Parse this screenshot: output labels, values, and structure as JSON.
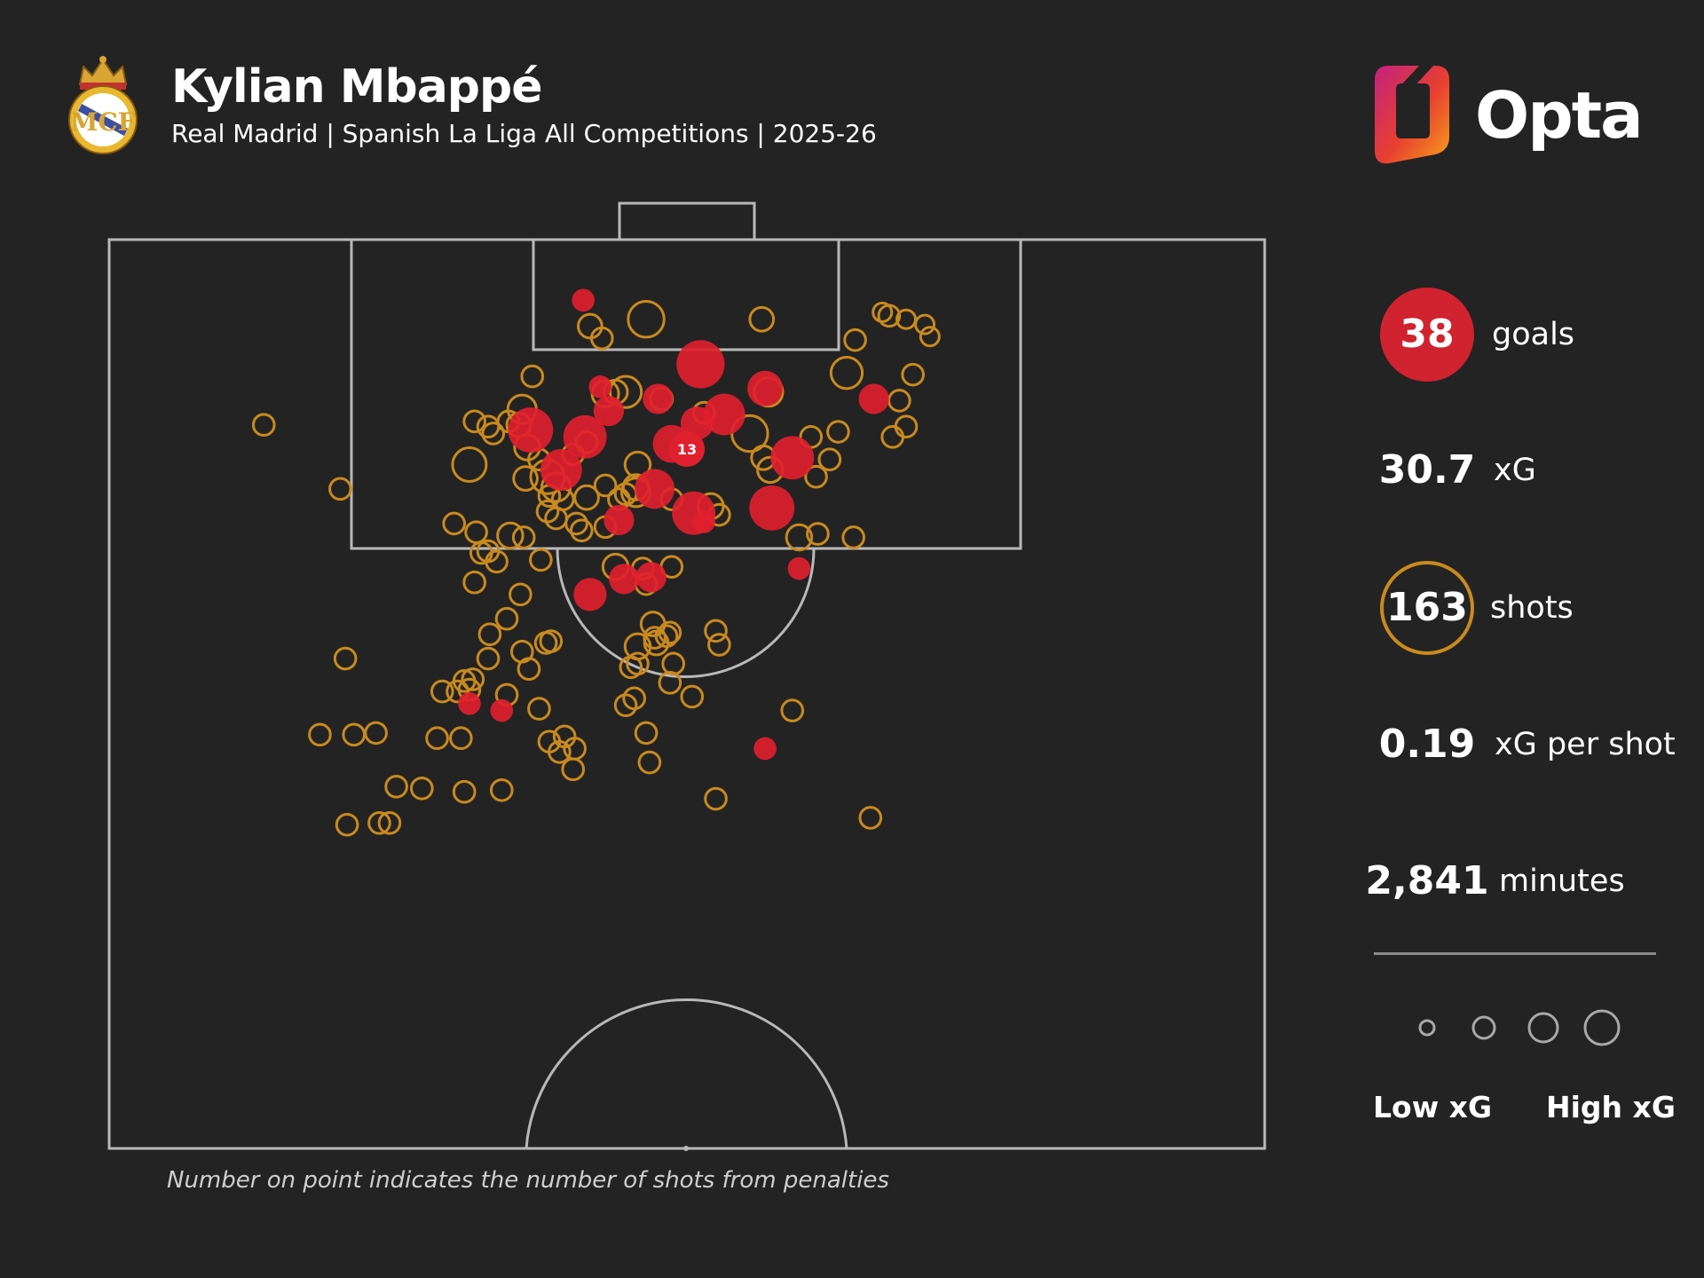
{
  "header": {
    "player": "Kylian Mbappé",
    "subtitle": "Real Madrid | Spanish La Liga All Competitions | 2025-26",
    "brand": "Opta",
    "crest_icon": "real-madrid-crest"
  },
  "stats": [
    {
      "key": "goals",
      "value": "38",
      "label": "goals"
    },
    {
      "key": "xg",
      "value": "30.7",
      "label": "xG"
    },
    {
      "key": "shots",
      "value": "163",
      "label": "shots"
    },
    {
      "key": "xg_per_shot",
      "value": "0.19",
      "label": "xG per shot"
    },
    {
      "key": "minutes",
      "value": "2,841",
      "label": "minutes"
    }
  ],
  "legend": {
    "low": "Low xG",
    "high": "High xG"
  },
  "footnote": "Number on point indicates the number of shots from penalties",
  "colors": {
    "background": "#232323",
    "goal": "#e0202e",
    "shot": "#c88a1f",
    "lines": "#b8b8b8"
  },
  "chart_data": {
    "type": "scatter",
    "description_units": "x = metres from left touchline (0-68), y = metres from goal line (0-52.5), xg = expected goals",
    "xlim": [
      0,
      68
    ],
    "ylim": [
      0,
      52.5
    ],
    "series": [
      {
        "name": "goals",
        "points": [
          [
            27.9,
            3.5,
            0.05
          ],
          [
            28.9,
            8.5,
            0.05
          ],
          [
            29.4,
            9.9,
            0.15
          ],
          [
            33.1,
            11.8,
            0.3
          ],
          [
            34.8,
            7.2,
            0.6
          ],
          [
            38.6,
            8.6,
            0.25
          ],
          [
            32.3,
            9.2,
            0.15
          ],
          [
            34.6,
            10.6,
            0.2
          ],
          [
            36.2,
            10.1,
            0.4
          ],
          [
            45.0,
            9.2,
            0.15
          ],
          [
            24.8,
            11.0,
            0.5
          ],
          [
            28.0,
            11.4,
            0.45
          ],
          [
            26.6,
            13.3,
            0.4
          ],
          [
            32.1,
            14.4,
            0.35
          ],
          [
            34.4,
            15.8,
            0.45
          ],
          [
            35.0,
            16.3,
            0.05
          ],
          [
            30.0,
            16.2,
            0.15
          ],
          [
            39.0,
            15.5,
            0.5
          ],
          [
            40.2,
            12.6,
            0.45
          ],
          [
            40.6,
            19.0,
            0.05
          ],
          [
            30.3,
            19.6,
            0.15
          ],
          [
            31.9,
            19.5,
            0.15
          ],
          [
            28.3,
            20.5,
            0.2
          ],
          [
            21.2,
            26.8,
            0.05
          ],
          [
            23.1,
            27.2,
            0.05
          ],
          [
            38.6,
            29.4,
            0.05
          ]
        ]
      },
      {
        "name": "penalties",
        "points": [
          [
            34.0,
            12.1,
            0.79
          ]
        ],
        "count": "13"
      },
      {
        "name": "shots",
        "points": [
          [
            28.3,
            5.0,
            0.08
          ],
          [
            29.0,
            5.7,
            0.05
          ],
          [
            31.6,
            4.6,
            0.3
          ],
          [
            38.4,
            4.6,
            0.08
          ],
          [
            43.9,
            5.8,
            0.05
          ],
          [
            45.9,
            4.4,
            0.05
          ],
          [
            46.9,
            4.6,
            0.03
          ],
          [
            48.0,
            4.9,
            0.03
          ],
          [
            48.3,
            5.6,
            0.03
          ],
          [
            45.5,
            4.2,
            0.03
          ],
          [
            24.9,
            7.9,
            0.05
          ],
          [
            43.4,
            7.7,
            0.2
          ],
          [
            47.3,
            7.8,
            0.05
          ],
          [
            29.2,
            8.9,
            0.12
          ],
          [
            29.8,
            8.8,
            0.08
          ],
          [
            30.4,
            8.8,
            0.2
          ],
          [
            32.5,
            9.2,
            0.06
          ],
          [
            38.8,
            8.8,
            0.15
          ],
          [
            35.0,
            10.0,
            0.05
          ],
          [
            37.7,
            11.2,
            0.3
          ],
          [
            24.3,
            9.8,
            0.15
          ],
          [
            21.5,
            10.5,
            0.05
          ],
          [
            22.3,
            10.8,
            0.05
          ],
          [
            22.6,
            11.2,
            0.05
          ],
          [
            23.5,
            10.5,
            0.05
          ],
          [
            24.1,
            10.7,
            0.08
          ],
          [
            41.3,
            11.4,
            0.05
          ],
          [
            42.9,
            11.1,
            0.05
          ],
          [
            46.1,
            11.4,
            0.05
          ],
          [
            46.9,
            10.8,
            0.05
          ],
          [
            46.5,
            9.3,
            0.05
          ],
          [
            21.2,
            13.0,
            0.25
          ],
          [
            24.6,
            12.0,
            0.1
          ],
          [
            25.3,
            12.7,
            0.05
          ],
          [
            27.3,
            12.4,
            0.05
          ],
          [
            28.1,
            11.7,
            0.05
          ],
          [
            31.1,
            13.0,
            0.1
          ],
          [
            38.5,
            12.6,
            0.08
          ],
          [
            38.9,
            13.3,
            0.1
          ],
          [
            42.4,
            12.7,
            0.05
          ],
          [
            25.8,
            13.7,
            0.25
          ],
          [
            26.3,
            14.3,
            0.15
          ],
          [
            24.5,
            13.8,
            0.08
          ],
          [
            25.9,
            14.8,
            0.05
          ],
          [
            26.7,
            15.0,
            0.05
          ],
          [
            28.1,
            14.9,
            0.08
          ],
          [
            29.2,
            14.2,
            0.05
          ],
          [
            30.4,
            14.7,
            0.05
          ],
          [
            31.0,
            14.6,
            0.15
          ],
          [
            31.0,
            14.3,
            0.1
          ],
          [
            30.0,
            15.0,
            0.05
          ],
          [
            35.4,
            15.4,
            0.1
          ],
          [
            35.9,
            15.9,
            0.05
          ],
          [
            40.6,
            17.2,
            0.1
          ],
          [
            29.2,
            16.6,
            0.05
          ],
          [
            27.5,
            16.4,
            0.05
          ],
          [
            27.8,
            16.8,
            0.05
          ],
          [
            26.3,
            16.1,
            0.05
          ],
          [
            25.8,
            15.7,
            0.05
          ],
          [
            24.4,
            17.2,
            0.05
          ],
          [
            23.6,
            17.1,
            0.1
          ],
          [
            22.3,
            18.0,
            0.05
          ],
          [
            20.3,
            16.4,
            0.05
          ],
          [
            21.6,
            16.9,
            0.05
          ],
          [
            29.8,
            18.9,
            0.1
          ],
          [
            31.4,
            19.0,
            0.05
          ],
          [
            33.1,
            18.9,
            0.05
          ],
          [
            33.1,
            15.0,
            0.05
          ],
          [
            31.6,
            19.9,
            0.05
          ],
          [
            25.4,
            18.5,
            0.05
          ],
          [
            21.9,
            18.1,
            0.05
          ],
          [
            21.5,
            19.8,
            0.05
          ],
          [
            22.8,
            18.6,
            0.05
          ],
          [
            41.7,
            17.0,
            0.05
          ],
          [
            43.8,
            17.2,
            0.05
          ],
          [
            41.6,
            13.7,
            0.05
          ],
          [
            32.0,
            22.2,
            0.08
          ],
          [
            33.0,
            22.7,
            0.05
          ],
          [
            32.8,
            22.9,
            0.05
          ],
          [
            32.2,
            23.3,
            0.08
          ],
          [
            31.1,
            23.5,
            0.1
          ],
          [
            33.2,
            24.5,
            0.05
          ],
          [
            33.0,
            25.6,
            0.05
          ],
          [
            35.7,
            22.6,
            0.05
          ],
          [
            35.9,
            23.4,
            0.05
          ],
          [
            22.3,
            24.2,
            0.05
          ],
          [
            23.4,
            21.9,
            0.05
          ],
          [
            24.2,
            20.5,
            0.05
          ],
          [
            24.3,
            23.8,
            0.05
          ],
          [
            13.6,
            14.4,
            0.05
          ],
          [
            13.9,
            24.2,
            0.05
          ],
          [
            14.4,
            28.6,
            0.05
          ],
          [
            15.7,
            28.5,
            0.05
          ],
          [
            19.3,
            28.8,
            0.05
          ],
          [
            19.6,
            26.1,
            0.05
          ],
          [
            20.5,
            26.1,
            0.05
          ],
          [
            20.9,
            25.5,
            0.05
          ],
          [
            21.4,
            25.4,
            0.05
          ],
          [
            21.2,
            26.0,
            0.05
          ],
          [
            22.4,
            22.8,
            0.05
          ],
          [
            23.4,
            26.3,
            0.05
          ],
          [
            24.7,
            24.8,
            0.05
          ],
          [
            25.3,
            27.1,
            0.05
          ],
          [
            25.9,
            29.0,
            0.05
          ],
          [
            26.5,
            29.6,
            0.05
          ],
          [
            27.3,
            30.6,
            0.05
          ],
          [
            27.4,
            29.4,
            0.05
          ],
          [
            25.7,
            23.3,
            0.05
          ],
          [
            26.0,
            23.2,
            0.05
          ],
          [
            30.7,
            24.7,
            0.05
          ],
          [
            31.1,
            24.5,
            0.05
          ],
          [
            32.1,
            23.0,
            0.05
          ],
          [
            34.3,
            26.4,
            0.05
          ],
          [
            40.2,
            27.2,
            0.05
          ],
          [
            14.0,
            33.8,
            0.05
          ],
          [
            15.9,
            33.7,
            0.05
          ],
          [
            16.5,
            33.7,
            0.05
          ],
          [
            16.9,
            31.6,
            0.05
          ],
          [
            18.4,
            31.7,
            0.05
          ],
          [
            20.9,
            31.9,
            0.05
          ],
          [
            23.1,
            31.8,
            0.05
          ],
          [
            31.8,
            30.2,
            0.05
          ],
          [
            30.4,
            26.9,
            0.05
          ],
          [
            31.6,
            28.5,
            0.05
          ],
          [
            20.7,
            28.8,
            0.05
          ],
          [
            26.8,
            28.7,
            0.05
          ],
          [
            30.9,
            26.5,
            0.05
          ],
          [
            35.7,
            32.3,
            0.05
          ],
          [
            44.8,
            33.4,
            0.05
          ],
          [
            12.4,
            28.6,
            0.05
          ],
          [
            9.1,
            10.7,
            0.05
          ]
        ]
      }
    ]
  }
}
